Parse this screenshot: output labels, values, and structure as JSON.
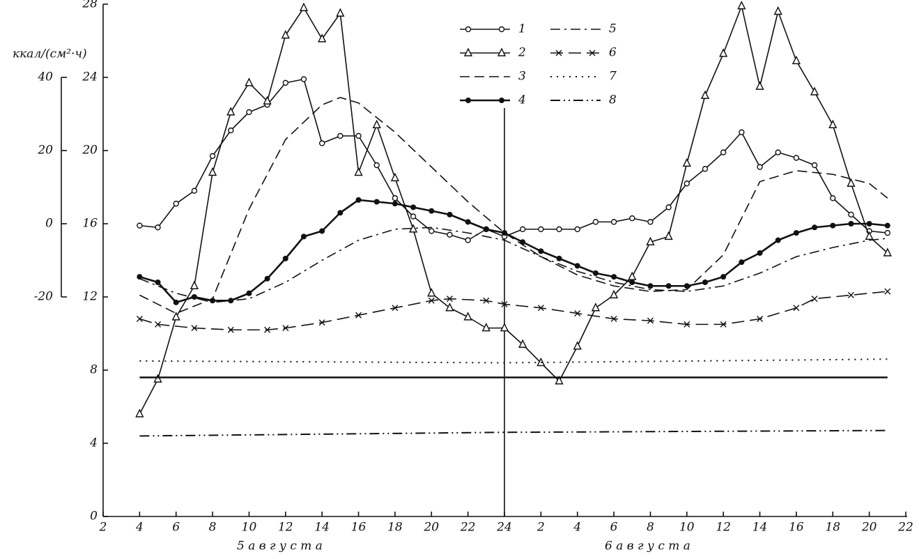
{
  "chart_data": {
    "type": "line",
    "y2_label": "ккал/(см²·ч)",
    "annotations": [
      "5 а в г у с т а",
      "6 а в г у с т а"
    ],
    "xlim": [
      2,
      46
    ],
    "xticks": [
      2,
      4,
      6,
      8,
      10,
      12,
      14,
      16,
      18,
      20,
      22,
      24,
      {
        "value": 26,
        "label": "2"
      },
      {
        "value": 28,
        "label": "4"
      },
      {
        "value": 30,
        "label": "6"
      },
      {
        "value": 32,
        "label": "8"
      },
      {
        "value": 34,
        "label": "10"
      },
      {
        "value": 36,
        "label": "12"
      },
      {
        "value": 38,
        "label": "14"
      },
      {
        "value": 40,
        "label": "16"
      },
      {
        "value": 42,
        "label": "18"
      },
      {
        "value": 44,
        "label": "20"
      },
      {
        "value": 46,
        "label": "22"
      }
    ],
    "ylim": [
      0,
      28
    ],
    "yticks": [
      0,
      4,
      8,
      12,
      16,
      20,
      24,
      28
    ],
    "y2lim": [
      -80,
      60
    ],
    "y2ticks": [
      -20,
      0,
      20,
      40
    ],
    "vline": 24,
    "series": [
      {
        "name": "1",
        "color": "#111",
        "dash": "solid",
        "marker": "circle",
        "width": 1.6,
        "x": [
          4,
          5,
          6,
          7,
          8,
          9,
          10,
          11,
          12,
          13,
          14,
          15,
          16,
          17,
          18,
          19,
          20,
          21,
          22,
          23,
          24,
          25,
          26,
          27,
          28,
          29,
          30,
          31,
          32,
          33,
          34,
          35,
          36,
          37,
          38,
          39,
          40,
          41,
          42,
          43,
          44,
          45
        ],
        "values": [
          15.9,
          15.8,
          17.1,
          17.8,
          19.7,
          21.1,
          22.1,
          22.5,
          23.7,
          23.9,
          20.4,
          20.8,
          20.8,
          19.2,
          17.4,
          16.4,
          15.6,
          15.4,
          15.1,
          15.7,
          15.3,
          15.7,
          15.7,
          15.7,
          15.7,
          16.1,
          16.1,
          16.3,
          16.1,
          16.9,
          18.2,
          19.0,
          19.9,
          21.0,
          19.1,
          19.9,
          19.6,
          19.2,
          17.4,
          16.5,
          15.6,
          15.5
        ]
      },
      {
        "name": "2",
        "color": "#111",
        "dash": "solid",
        "marker": "triangle",
        "width": 1.6,
        "x": [
          4,
          5,
          6,
          7,
          8,
          9,
          10,
          11,
          12,
          13,
          14,
          15,
          16,
          17,
          18,
          19,
          20,
          21,
          22,
          23,
          24,
          25,
          26,
          27,
          28,
          29,
          30,
          31,
          32,
          33,
          34,
          35,
          36,
          37,
          38,
          39,
          40,
          41,
          42,
          43,
          44,
          45
        ],
        "values": [
          5.6,
          7.5,
          10.9,
          12.6,
          18.8,
          22.1,
          23.7,
          22.7,
          26.3,
          27.8,
          26.1,
          27.5,
          18.8,
          21.4,
          18.5,
          15.7,
          12.2,
          11.4,
          10.9,
          10.3,
          10.3,
          9.4,
          8.4,
          7.4,
          9.3,
          11.4,
          12.1,
          13.1,
          15.0,
          15.3,
          19.3,
          23.0,
          25.3,
          27.9,
          23.5,
          27.6,
          24.9,
          23.2,
          21.4,
          18.2,
          15.3,
          14.4
        ]
      },
      {
        "name": "3",
        "color": "#111",
        "dash": "dash",
        "marker": "none",
        "width": 1.6,
        "x": [
          4,
          6,
          8,
          10,
          12,
          14,
          15,
          16,
          18,
          20,
          22,
          24,
          26,
          28,
          30,
          32,
          34,
          36,
          38,
          40,
          42,
          44,
          45
        ],
        "values": [
          12.1,
          11.1,
          11.9,
          16.8,
          20.6,
          22.5,
          22.9,
          22.6,
          21.0,
          19.1,
          17.2,
          15.5,
          14.2,
          13.2,
          12.6,
          12.3,
          12.4,
          14.3,
          18.3,
          18.9,
          18.7,
          18.2,
          17.4
        ]
      },
      {
        "name": "4",
        "color": "#111",
        "dash": "solid",
        "marker": "dot",
        "width": 2.6,
        "x": [
          4,
          5,
          6,
          7,
          8,
          9,
          10,
          11,
          12,
          13,
          14,
          15,
          16,
          17,
          18,
          19,
          20,
          21,
          22,
          23,
          24,
          25,
          26,
          27,
          28,
          29,
          30,
          31,
          32,
          33,
          34,
          35,
          36,
          37,
          38,
          39,
          40,
          41,
          42,
          43,
          44,
          45
        ],
        "values": [
          13.1,
          12.8,
          11.7,
          12.0,
          11.8,
          11.8,
          12.2,
          13.0,
          14.1,
          15.3,
          15.6,
          16.6,
          17.3,
          17.2,
          17.1,
          16.9,
          16.7,
          16.5,
          16.1,
          15.7,
          15.5,
          15.0,
          14.5,
          14.1,
          13.7,
          13.3,
          13.1,
          12.8,
          12.6,
          12.6,
          12.6,
          12.8,
          13.1,
          13.9,
          14.4,
          15.1,
          15.5,
          15.8,
          15.9,
          16.0,
          16.0,
          15.9
        ]
      },
      {
        "name": "5",
        "color": "#111",
        "dash": "dashdot",
        "marker": "none",
        "width": 1.6,
        "x": [
          4,
          6,
          8,
          10,
          12,
          14,
          16,
          18,
          20,
          22,
          24,
          26,
          28,
          30,
          32,
          34,
          36,
          38,
          40,
          42,
          44,
          45
        ],
        "values": [
          13.0,
          12.2,
          11.7,
          11.9,
          12.8,
          14.0,
          15.1,
          15.7,
          15.8,
          15.5,
          15.1,
          14.2,
          13.4,
          12.8,
          12.4,
          12.3,
          12.6,
          13.3,
          14.2,
          14.7,
          15.1,
          15.2
        ]
      },
      {
        "name": "6",
        "color": "#111",
        "dash": "longdash",
        "marker": "cross",
        "width": 1.6,
        "x": [
          4,
          5,
          7,
          9,
          11,
          12,
          14,
          16,
          18,
          20,
          21,
          23,
          24,
          26,
          28,
          30,
          32,
          34,
          36,
          38,
          40,
          41,
          43,
          45
        ],
        "values": [
          10.8,
          10.5,
          10.3,
          10.2,
          10.2,
          10.3,
          10.6,
          11.0,
          11.4,
          11.8,
          11.9,
          11.8,
          11.6,
          11.4,
          11.1,
          10.8,
          10.7,
          10.5,
          10.5,
          10.8,
          11.4,
          11.9,
          12.1,
          12.3
        ]
      },
      {
        "name": "7",
        "color": "#111",
        "dash": "dot",
        "marker": "none",
        "width": 2,
        "x": [
          4,
          24,
          45
        ],
        "values": [
          8.5,
          8.4,
          8.6
        ]
      },
      {
        "name": "8",
        "color": "#111",
        "dash": "dashdotdot",
        "marker": "none",
        "width": 2,
        "x": [
          4,
          24,
          45
        ],
        "values": [
          4.4,
          4.6,
          4.7
        ]
      },
      {
        "color": "#111",
        "dash": "solid",
        "marker": "none",
        "width": 2.4,
        "x": [
          4,
          45
        ],
        "values": [
          7.6,
          7.6
        ]
      }
    ]
  }
}
